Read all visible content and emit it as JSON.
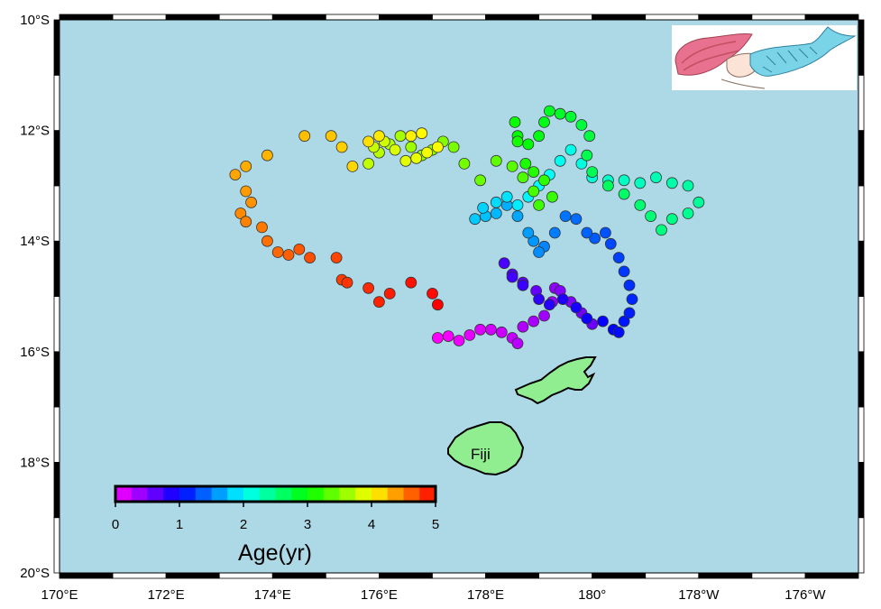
{
  "map": {
    "ocean_color": "#add8e6",
    "land_color": "#90ee90",
    "lon_range": [
      170,
      185
    ],
    "lat_range": [
      -20,
      -10
    ],
    "lon_ticks": [
      {
        "value": 170,
        "label": "170°E"
      },
      {
        "value": 172,
        "label": "172°E"
      },
      {
        "value": 174,
        "label": "174°E"
      },
      {
        "value": 176,
        "label": "176°E"
      },
      {
        "value": 178,
        "label": "178°E"
      },
      {
        "value": 180,
        "label": "180°"
      },
      {
        "value": 182,
        "label": "178°W"
      },
      {
        "value": 184,
        "label": "176°W"
      }
    ],
    "lat_ticks": [
      {
        "value": -10,
        "label": "10°S"
      },
      {
        "value": -12,
        "label": "12°S"
      },
      {
        "value": -14,
        "label": "14°S"
      },
      {
        "value": -16,
        "label": "16°S"
      },
      {
        "value": -18,
        "label": "18°S"
      },
      {
        "value": -20,
        "label": "20°S"
      }
    ],
    "island_label": "Fiji",
    "inset_icon": "mermaid-drawing"
  },
  "colorbar": {
    "title": "Age(yr)",
    "range": [
      0,
      5
    ],
    "ticks": [
      "0",
      "1",
      "2",
      "3",
      "4",
      "5"
    ]
  },
  "track": [
    [
      177.1,
      -15.75
    ],
    [
      177.3,
      -15.72
    ],
    [
      177.5,
      -15.8
    ],
    [
      177.7,
      -15.7
    ],
    [
      177.9,
      -15.6
    ],
    [
      178.1,
      -15.6
    ],
    [
      178.3,
      -15.65
    ],
    [
      178.5,
      -15.75
    ],
    [
      178.6,
      -15.85
    ],
    [
      178.7,
      -15.55
    ],
    [
      178.9,
      -15.45
    ],
    [
      179.1,
      -15.35
    ],
    [
      179.25,
      -15.1
    ],
    [
      179.3,
      -14.85
    ],
    [
      179.4,
      -14.9
    ],
    [
      179.6,
      -15.1
    ],
    [
      179.8,
      -15.3
    ],
    [
      180.0,
      -15.5
    ],
    [
      178.95,
      -14.9
    ],
    [
      178.7,
      -14.75
    ],
    [
      178.5,
      -14.6
    ],
    [
      178.35,
      -14.4
    ],
    [
      178.5,
      -14.65
    ],
    [
      178.7,
      -14.8
    ],
    [
      179.0,
      -15.05
    ],
    [
      179.2,
      -15.15
    ],
    [
      179.45,
      -15.05
    ],
    [
      179.7,
      -15.2
    ],
    [
      179.9,
      -15.4
    ],
    [
      180.2,
      -15.45
    ],
    [
      180.4,
      -15.6
    ],
    [
      180.5,
      -15.65
    ],
    [
      180.6,
      -15.45
    ],
    [
      180.7,
      -15.3
    ],
    [
      180.75,
      -15.05
    ],
    [
      180.7,
      -14.8
    ],
    [
      180.6,
      -14.55
    ],
    [
      180.5,
      -14.3
    ],
    [
      180.35,
      -14.05
    ],
    [
      180.25,
      -13.85
    ],
    [
      180.05,
      -13.95
    ],
    [
      179.9,
      -13.85
    ],
    [
      179.7,
      -13.6
    ],
    [
      179.5,
      -13.55
    ],
    [
      179.3,
      -13.85
    ],
    [
      179.1,
      -14.1
    ],
    [
      179.0,
      -14.2
    ],
    [
      178.9,
      -14.0
    ],
    [
      178.8,
      -13.85
    ],
    [
      178.6,
      -13.55
    ],
    [
      178.4,
      -13.35
    ],
    [
      178.2,
      -13.5
    ],
    [
      178.0,
      -13.55
    ],
    [
      177.8,
      -13.6
    ],
    [
      177.95,
      -13.4
    ],
    [
      178.2,
      -13.3
    ],
    [
      178.4,
      -13.2
    ],
    [
      178.6,
      -13.35
    ],
    [
      178.8,
      -13.2
    ],
    [
      179.0,
      -13.0
    ],
    [
      179.2,
      -12.8
    ],
    [
      179.4,
      -12.55
    ],
    [
      179.6,
      -12.35
    ],
    [
      179.8,
      -12.6
    ],
    [
      180.0,
      -12.85
    ],
    [
      180.3,
      -12.9
    ],
    [
      180.6,
      -12.9
    ],
    [
      180.9,
      -12.95
    ],
    [
      181.2,
      -12.85
    ],
    [
      181.5,
      -12.95
    ],
    [
      181.8,
      -13.0
    ],
    [
      182.0,
      -13.3
    ],
    [
      181.8,
      -13.5
    ],
    [
      181.5,
      -13.6
    ],
    [
      181.3,
      -13.8
    ],
    [
      181.1,
      -13.55
    ],
    [
      180.9,
      -13.35
    ],
    [
      180.6,
      -13.15
    ],
    [
      180.3,
      -13.0
    ],
    [
      180.0,
      -12.75
    ],
    [
      179.9,
      -12.45
    ],
    [
      179.95,
      -12.1
    ],
    [
      179.8,
      -11.9
    ],
    [
      179.6,
      -11.75
    ],
    [
      179.4,
      -11.7
    ],
    [
      179.2,
      -11.65
    ],
    [
      179.1,
      -11.85
    ],
    [
      179.0,
      -12.1
    ],
    [
      178.8,
      -12.25
    ],
    [
      178.6,
      -12.1
    ],
    [
      178.55,
      -11.85
    ],
    [
      178.6,
      -12.2
    ],
    [
      178.75,
      -12.6
    ],
    [
      178.9,
      -12.75
    ],
    [
      179.1,
      -12.9
    ],
    [
      179.25,
      -13.2
    ],
    [
      179.0,
      -13.35
    ],
    [
      178.9,
      -13.1
    ],
    [
      178.7,
      -12.85
    ],
    [
      178.5,
      -12.65
    ],
    [
      178.2,
      -12.55
    ],
    [
      177.9,
      -12.9
    ],
    [
      177.6,
      -12.6
    ],
    [
      177.4,
      -12.3
    ],
    [
      177.2,
      -12.2
    ],
    [
      177.0,
      -12.35
    ],
    [
      176.8,
      -12.45
    ],
    [
      176.6,
      -12.3
    ],
    [
      176.4,
      -12.1
    ],
    [
      176.2,
      -12.25
    ],
    [
      176.0,
      -12.4
    ],
    [
      175.8,
      -12.6
    ],
    [
      175.9,
      -12.3
    ],
    [
      176.1,
      -12.2
    ],
    [
      176.3,
      -12.35
    ],
    [
      176.5,
      -12.55
    ],
    [
      176.7,
      -12.5
    ],
    [
      176.9,
      -12.4
    ],
    [
      177.1,
      -12.3
    ],
    [
      176.8,
      -12.05
    ],
    [
      176.6,
      -12.1
    ],
    [
      176.0,
      -12.1
    ],
    [
      175.8,
      -12.2
    ],
    [
      175.5,
      -12.65
    ],
    [
      175.3,
      -12.3
    ],
    [
      175.1,
      -12.1
    ],
    [
      174.6,
      -12.1
    ],
    [
      173.9,
      -12.45
    ],
    [
      173.5,
      -12.65
    ],
    [
      173.3,
      -12.8
    ],
    [
      173.5,
      -13.1
    ],
    [
      173.6,
      -13.3
    ],
    [
      173.4,
      -13.5
    ],
    [
      173.5,
      -13.65
    ],
    [
      173.8,
      -13.75
    ],
    [
      173.9,
      -14.0
    ],
    [
      174.1,
      -14.2
    ],
    [
      174.3,
      -14.25
    ],
    [
      174.5,
      -14.15
    ],
    [
      174.7,
      -14.3
    ],
    [
      175.2,
      -14.3
    ],
    [
      175.3,
      -14.7
    ],
    [
      175.4,
      -14.75
    ],
    [
      175.8,
      -14.85
    ],
    [
      176.0,
      -15.1
    ],
    [
      176.2,
      -14.95
    ],
    [
      176.6,
      -14.75
    ],
    [
      177.0,
      -14.95
    ],
    [
      177.1,
      -15.15
    ]
  ]
}
